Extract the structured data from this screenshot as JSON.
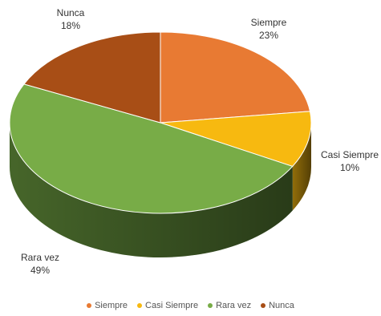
{
  "chart_data": {
    "type": "pie",
    "title": "",
    "style": "3d",
    "slices": [
      {
        "label": "Siempre",
        "value": 23,
        "value_label": "23%",
        "color": "#E87A33"
      },
      {
        "label": "Casi Siempre",
        "value": 10,
        "value_label": "10%",
        "color": "#F7B910"
      },
      {
        "label": "Rara vez",
        "value": 49,
        "value_label": "49%",
        "color": "#78AC47"
      },
      {
        "label": "Nunca",
        "value": 18,
        "value_label": "18%",
        "color": "#A84E16"
      }
    ],
    "legend": {
      "position": "bottom",
      "entries": [
        "Siempre",
        "Casi Siempre",
        "Rara vez",
        "Nunca"
      ]
    }
  }
}
